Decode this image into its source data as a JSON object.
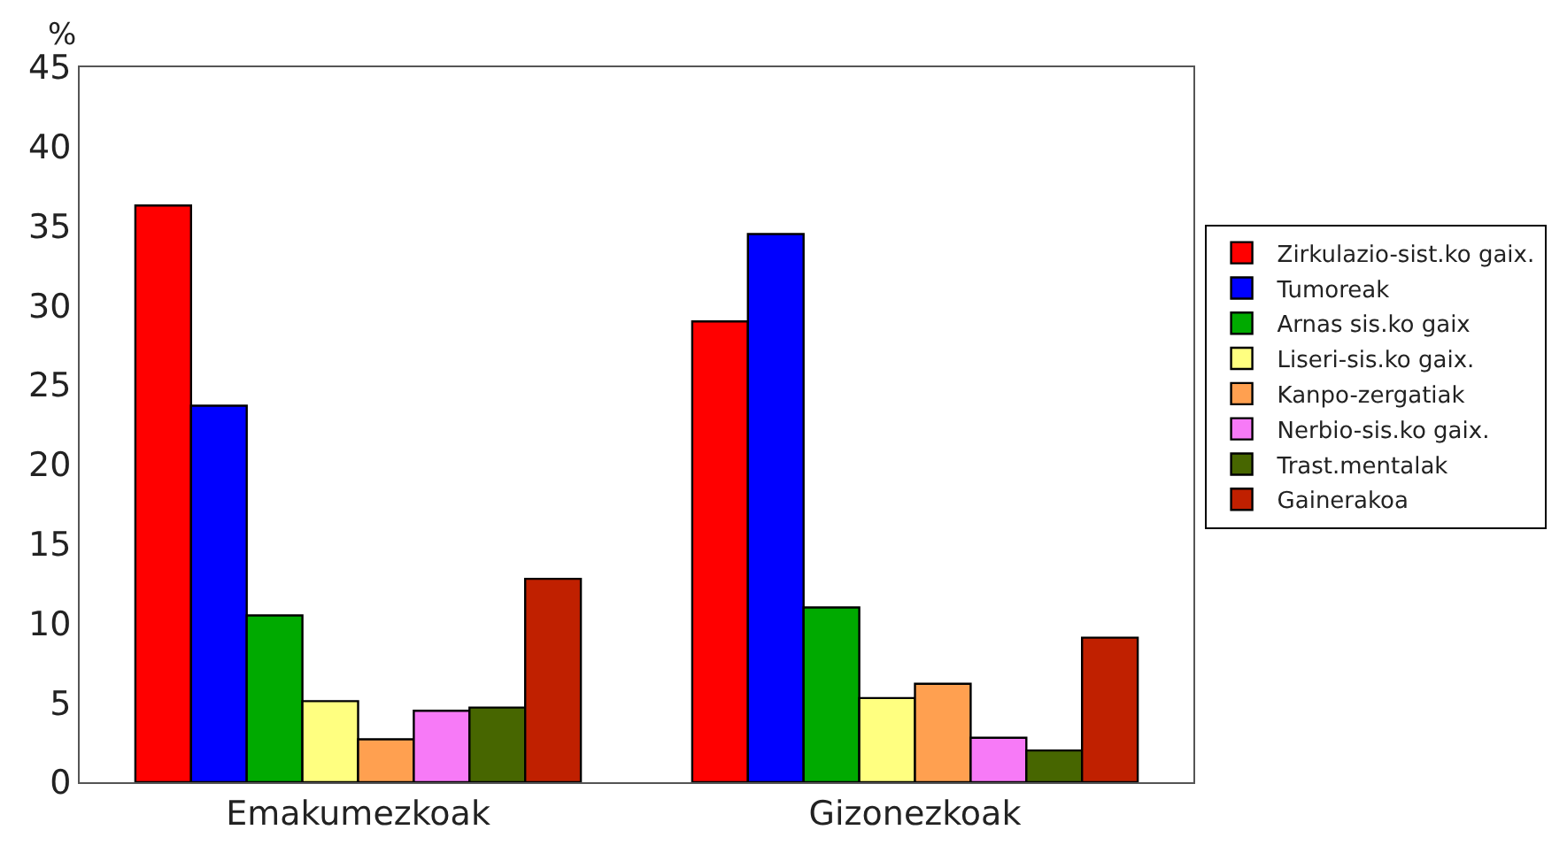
{
  "chart_data": {
    "type": "bar",
    "ylabel": "%",
    "categories": [
      "Emakumezkoak",
      "Gizonezkoak"
    ],
    "series": [
      {
        "name": "Zirkulazio-sist.ko gaix.",
        "color": "#ff0000",
        "values": [
          36.3,
          29.0
        ]
      },
      {
        "name": "Tumoreak",
        "color": "#0000ff",
        "values": [
          23.7,
          34.5
        ]
      },
      {
        "name": "Arnas sis.ko gaix",
        "color": "#00aa00",
        "values": [
          10.5,
          11.0
        ]
      },
      {
        "name": "Liseri-sis.ko gaix.",
        "color": "#ffff80",
        "values": [
          5.1,
          5.3
        ]
      },
      {
        "name": "Kanpo-zergatiak",
        "color": "#ffa050",
        "values": [
          2.7,
          6.2
        ]
      },
      {
        "name": "Nerbio-sis.ko gaix.",
        "color": "#f77af7",
        "values": [
          4.5,
          2.8
        ]
      },
      {
        "name": "Trast.mentalak",
        "color": "#476600",
        "values": [
          4.7,
          2.0
        ]
      },
      {
        "name": "Gainerakoa",
        "color": "#c02000",
        "values": [
          12.8,
          9.1
        ]
      }
    ],
    "ylim": [
      0,
      45
    ],
    "yticks": [
      0,
      5,
      10,
      15,
      20,
      25,
      30,
      35,
      40,
      45
    ],
    "legend": "right"
  }
}
